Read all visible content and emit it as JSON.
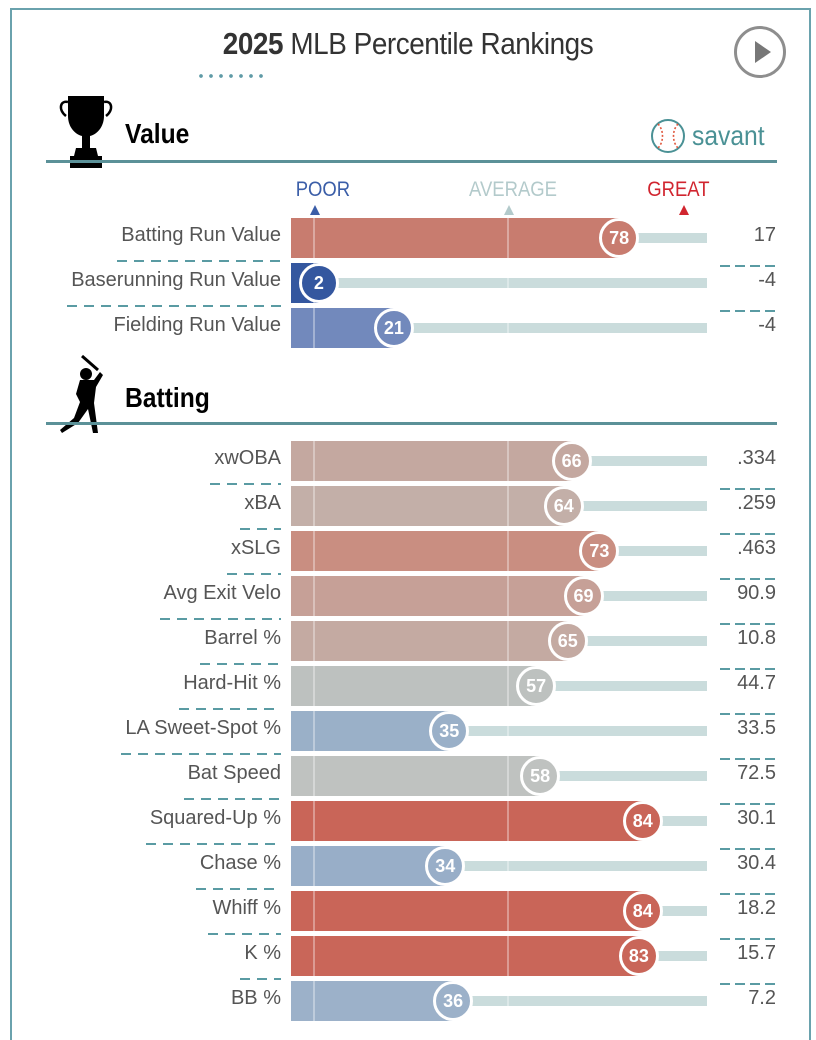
{
  "header": {
    "title_year": "2025",
    "title_rest": "MLB Percentile Rankings",
    "play_icon": "play-icon"
  },
  "brand": {
    "logo_text": "savant",
    "icon": "baseball-icon"
  },
  "axis": {
    "poor": "POOR",
    "average": "AVERAGE",
    "great": "GREAT",
    "colors": {
      "poor": "#3b5ea8",
      "average": "#b3cacb",
      "great": "#d1252f"
    }
  },
  "chart_data": [
    {
      "type": "bar",
      "title": "Value",
      "xlim": [
        0,
        100
      ],
      "categories": [
        "Batting Run Value",
        "Baserunning Run Value",
        "Fielding Run Value"
      ],
      "percentiles": [
        78,
        2,
        21
      ],
      "stat_values": [
        "17",
        "-4",
        "-4"
      ],
      "colors": [
        "#c87c6f",
        "#34579f",
        "#7289bc"
      ]
    },
    {
      "type": "bar",
      "title": "Batting",
      "xlim": [
        0,
        100
      ],
      "categories": [
        "xwOBA",
        "xBA",
        "xSLG",
        "Avg Exit Velo",
        "Barrel %",
        "Hard-Hit %",
        "LA Sweet-Spot %",
        "Bat Speed",
        "Squared-Up %",
        "Chase %",
        "Whiff %",
        "K %",
        "BB %"
      ],
      "percentiles": [
        66,
        64,
        73,
        69,
        65,
        57,
        35,
        58,
        84,
        34,
        84,
        83,
        36
      ],
      "stat_values": [
        ".334",
        ".259",
        ".463",
        "90.9",
        "10.8",
        "44.7",
        "33.5",
        "72.5",
        "30.1",
        "30.4",
        "18.2",
        "15.7",
        "7.2"
      ],
      "colors": [
        "#c4a8a0",
        "#c3afa8",
        "#c98e81",
        "#c6a097",
        "#c4aaa2",
        "#bdc1bf",
        "#9ab0c8",
        "#bfc2c0",
        "#c96558",
        "#98aec8",
        "#c96558",
        "#c96659",
        "#9cb1c9"
      ]
    }
  ]
}
